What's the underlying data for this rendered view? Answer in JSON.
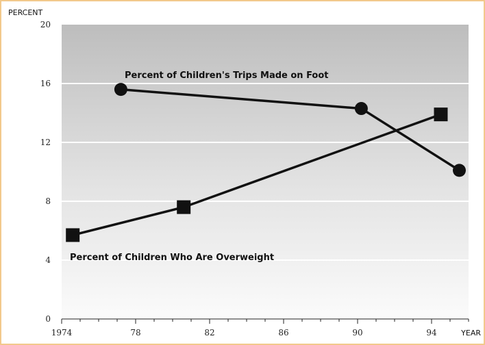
{
  "chart_data": {
    "type": "line",
    "ylabel": "PERCENT",
    "xlabel": "YEAR",
    "xlim": [
      1974,
      1996
    ],
    "ylim": [
      0,
      20
    ],
    "x_ticks": [
      1974,
      1978,
      1982,
      1986,
      1990,
      1994
    ],
    "x_tick_labels": [
      "1974",
      "78",
      "82",
      "86",
      "90",
      "94"
    ],
    "y_ticks": [
      0,
      4,
      8,
      12,
      16,
      20
    ],
    "y_tick_labels": [
      "0",
      "4",
      "8",
      "12",
      "16",
      "20"
    ],
    "grid": true,
    "legend": "none",
    "series": [
      {
        "name": "Percent of Children's Trips Made on Foot",
        "marker": "circle",
        "x": [
          1977.2,
          1990.2,
          1995.5
        ],
        "y": [
          15.6,
          14.3,
          10.1
        ]
      },
      {
        "name": "Percent of Children Who Are Overweight",
        "marker": "square",
        "x": [
          1974.6,
          1980.6,
          1994.5
        ],
        "y": [
          5.7,
          7.6,
          13.9
        ]
      }
    ]
  }
}
